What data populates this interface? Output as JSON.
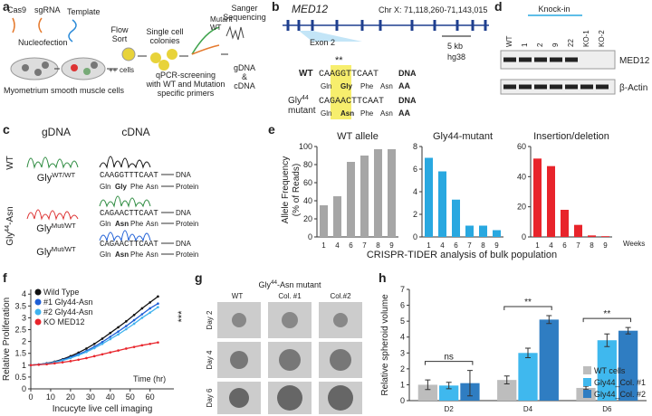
{
  "panel_labels": [
    "a",
    "b",
    "c",
    "d",
    "e",
    "f",
    "g",
    "h"
  ],
  "panel_a": {
    "cas9": "Cas9",
    "sgrna": "sgRNA",
    "template": "Template",
    "nucleofection": "Nucleofection",
    "flow_sort": [
      "Flow",
      "Sort"
    ],
    "plus": "++",
    "cells": "cells",
    "myometrium": "Myometrium smooth muscle cells",
    "colonies": [
      "Single cell",
      "colonies"
    ],
    "legend_mutant": "Mutant",
    "legend_wt": "WT",
    "qpcr": [
      "qPCR-screening",
      "with WT and Mutation",
      "specific primers"
    ],
    "sanger": [
      "Sanger",
      "Sequencing"
    ],
    "gdna": "gDNA",
    "amp": "&",
    "cdna": "cDNA"
  },
  "panel_b": {
    "gene": "MED12",
    "coords": "Chr X: 71,118,260-71,143,015",
    "exon": "Exon 2",
    "scale": "5 kb",
    "build": "hg38",
    "stars": "**",
    "wt_label": "WT",
    "wt_dna": "CAAGGTTCAAT",
    "dna": "DNA",
    "wt_aa": [
      "Gln",
      "Gly",
      "Phe",
      "Asn"
    ],
    "aa": "AA",
    "mut_label": {
      "base": "Gly",
      "sup": "44"
    },
    "mut_label2": "mutant",
    "mut_dna": "CAGAACTTCAAT",
    "mut_aa": [
      "Gln",
      "Asn",
      "Phe",
      "Asn"
    ]
  },
  "panel_c": {
    "gdna": "gDNA",
    "cdna": "cDNA",
    "dna": "DNA",
    "protein": "Protein",
    "row_labels": [
      "WT",
      {
        "base": "Gly",
        "sup": "44",
        "rest": "-Asn"
      }
    ],
    "rows": [
      {
        "genotype": {
          "base": "Gly",
          "sup": "WT/WT"
        },
        "seq": "CAAGGTTTCAAT",
        "aa": [
          "Gln",
          "Gly",
          "Phe",
          "Asn"
        ]
      },
      {
        "genotype": {
          "base": "Gly",
          "sup": "Mut/WT"
        },
        "seq": "CAGAACTTCAAT",
        "aa": [
          "Gln",
          "Asn",
          "Phe",
          "Asn"
        ]
      },
      {
        "genotype": {
          "base": "Gly",
          "sup": "Mut/WT"
        },
        "seq": "CAGAACTTCAAT",
        "aa": [
          "Gln",
          "Asn",
          "Phe",
          "Asn"
        ]
      }
    ]
  },
  "panel_d": {
    "knockin": "Knock-in",
    "lanes": [
      "WT",
      "1",
      "2",
      "9",
      "22",
      "KO-1",
      "KO-2"
    ],
    "bands": [
      "MED12",
      "β-Actin"
    ]
  },
  "panel_e": {
    "ylabel": [
      "Allele Frequency",
      "(% of Reads)"
    ],
    "xlabel": "CRISPR-TIDER analysis of bulk population",
    "xunit": "Weeks"
  },
  "panel_g": {
    "header": {
      "base": "Gly",
      "sup": "44",
      "rest": "-Asn mutant"
    },
    "cols": [
      "WT",
      "Col. #1",
      "Col.#2"
    ],
    "rows": [
      "Day 2",
      "Day 4",
      "Day 6"
    ]
  },
  "chart_data": [
    {
      "type": "bar",
      "title": "WT allele",
      "categories": [
        "1",
        "4",
        "6",
        "7",
        "8",
        "9"
      ],
      "values": [
        35,
        45,
        83,
        90,
        97,
        97
      ],
      "color": "#a6a6a6",
      "ylim": [
        0,
        100
      ],
      "yticks": [
        0,
        20,
        40,
        60,
        80,
        100
      ]
    },
    {
      "type": "bar",
      "title": "Gly44-mutant",
      "categories": [
        "1",
        "4",
        "6",
        "7",
        "8",
        "9"
      ],
      "values": [
        7,
        5.8,
        3.3,
        1,
        1,
        0.6
      ],
      "color": "#29a8e0",
      "ylim": [
        0,
        8
      ],
      "yticks": [
        0,
        2,
        4,
        6,
        8
      ]
    },
    {
      "type": "bar",
      "title": "Insertion/deletion",
      "categories": [
        "1",
        "4",
        "6",
        "7",
        "8",
        "9"
      ],
      "values": [
        52,
        47,
        18,
        8,
        1,
        0.5
      ],
      "color": "#e8242b",
      "ylim": [
        0,
        60
      ],
      "yticks": [
        0,
        20,
        40,
        60
      ]
    },
    {
      "type": "line",
      "ylabel": "Relative Proliferation",
      "xlabel": "Incucyte live cell imaging",
      "annotation": "Time (hr)",
      "significance": "***",
      "legend": "upper left",
      "x": [
        0,
        4,
        8,
        12,
        16,
        20,
        24,
        28,
        32,
        36,
        40,
        44,
        48,
        52,
        56,
        60,
        64
      ],
      "xlim": [
        0,
        72
      ],
      "xticks": [
        0,
        10,
        20,
        30,
        40,
        50,
        60
      ],
      "ylim": [
        0,
        4.2
      ],
      "yticks": [
        0,
        0.5,
        1,
        1.5,
        2,
        2.5,
        3,
        3.5,
        4
      ],
      "series": [
        {
          "name": "Wild Type",
          "color": "#111111",
          "values": [
            1,
            1.03,
            1.08,
            1.15,
            1.25,
            1.38,
            1.53,
            1.7,
            1.9,
            2.12,
            2.36,
            2.6,
            2.85,
            3.12,
            3.4,
            3.65,
            3.9
          ]
        },
        {
          "name": "#1 Gly44-Asn",
          "color": "#1f5fd6",
          "values": [
            1,
            1.03,
            1.07,
            1.13,
            1.22,
            1.33,
            1.46,
            1.6,
            1.78,
            1.98,
            2.2,
            2.42,
            2.65,
            2.9,
            3.15,
            3.4,
            3.6
          ]
        },
        {
          "name": "#2 Gly44-Asn",
          "color": "#3fb2ee",
          "values": [
            1,
            1.02,
            1.06,
            1.12,
            1.2,
            1.3,
            1.42,
            1.56,
            1.72,
            1.9,
            2.1,
            2.3,
            2.52,
            2.75,
            3,
            3.22,
            3.45
          ]
        },
        {
          "name": "KO MED12",
          "color": "#e8242b",
          "values": [
            1,
            1.02,
            1.04,
            1.08,
            1.12,
            1.17,
            1.23,
            1.3,
            1.38,
            1.46,
            1.54,
            1.62,
            1.7,
            1.77,
            1.84,
            1.9,
            1.96
          ]
        }
      ]
    },
    {
      "type": "bar",
      "ylabel": "Relative spheroid volume",
      "categories": [
        "D2",
        "D4",
        "D6"
      ],
      "legend": "lower right",
      "annotations": [
        "ns",
        "**",
        "**"
      ],
      "ylim": [
        0,
        7
      ],
      "yticks": [
        0,
        1,
        2,
        3,
        4,
        5,
        6,
        7
      ],
      "series": [
        {
          "name": "WT cells",
          "color": "#bdbdbd",
          "values": [
            1,
            1.3,
            0.8
          ],
          "errors": [
            0.3,
            0.25,
            0.1
          ]
        },
        {
          "name": "Gly44_Col. #1",
          "color": "#3fb8ee",
          "values": [
            0.95,
            3,
            3.8
          ],
          "errors": [
            0.2,
            0.3,
            0.4
          ]
        },
        {
          "name": "Gly44_Col. #2",
          "color": "#2f7dc2",
          "values": [
            1.1,
            5.1,
            4.4
          ],
          "errors": [
            0.8,
            0.25,
            0.2
          ]
        }
      ]
    }
  ]
}
